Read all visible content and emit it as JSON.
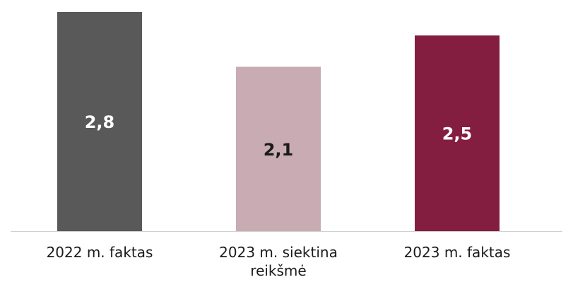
{
  "chart_data": {
    "type": "bar",
    "categories": [
      [
        "2022 m. faktas"
      ],
      [
        "2023 m. siektina",
        "reikšmė"
      ],
      [
        "2023 m. faktas"
      ]
    ],
    "values": [
      2.8,
      2.1,
      2.5
    ],
    "value_labels": [
      "2,8",
      "2,1",
      "2,5"
    ],
    "colors": [
      "#595959",
      "#c9acb3",
      "#831e40"
    ],
    "label_colors": [
      "#ffffff",
      "#1a1a1a",
      "#ffffff"
    ],
    "title": "",
    "xlabel": "",
    "ylabel": "",
    "ylim": [
      0,
      2.8
    ],
    "grid": false,
    "legend": "none"
  }
}
